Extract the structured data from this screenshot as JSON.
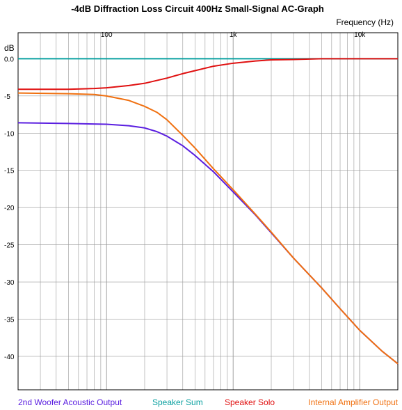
{
  "chart_data": {
    "type": "line",
    "title": "-4dB Diffraction Loss Circuit 400Hz Small-Signal AC-Graph",
    "xlabel": "Frequency  (Hz)",
    "ylabel": "dB",
    "x_scale": "log",
    "xlim": [
      20,
      20000
    ],
    "ylim": [
      -44.5,
      3.5
    ],
    "x_tick_labels": [
      {
        "value": 100,
        "label": "100"
      },
      {
        "value": 1000,
        "label": "1k"
      },
      {
        "value": 10000,
        "label": "10k"
      }
    ],
    "y_ticks": [
      {
        "value": 0,
        "label": "0.0"
      },
      {
        "value": -5,
        "label": "-5"
      },
      {
        "value": -10,
        "label": "-10"
      },
      {
        "value": -15,
        "label": "-15"
      },
      {
        "value": -20,
        "label": "-20"
      },
      {
        "value": -25,
        "label": "-25"
      },
      {
        "value": -30,
        "label": "-30"
      },
      {
        "value": -35,
        "label": "-35"
      },
      {
        "value": -40,
        "label": "-40"
      }
    ],
    "grid": true,
    "legend_position": "bottom",
    "series": [
      {
        "name": "2nd Woofer Acoustic Output",
        "color": "#5a1ee0",
        "points": [
          [
            20,
            -8.6
          ],
          [
            50,
            -8.7
          ],
          [
            100,
            -8.8
          ],
          [
            150,
            -9.0
          ],
          [
            200,
            -9.3
          ],
          [
            250,
            -9.8
          ],
          [
            300,
            -10.4
          ],
          [
            400,
            -11.7
          ],
          [
            500,
            -13.0
          ],
          [
            700,
            -15.2
          ],
          [
            1000,
            -17.9
          ],
          [
            1500,
            -21.0
          ],
          [
            2000,
            -23.4
          ],
          [
            3000,
            -26.8
          ],
          [
            5000,
            -30.8
          ],
          [
            7000,
            -33.6
          ],
          [
            10000,
            -36.5
          ],
          [
            15000,
            -39.3
          ],
          [
            20000,
            -41.0
          ]
        ]
      },
      {
        "name": "Speaker Sum",
        "color": "#0aa0a0",
        "points": [
          [
            20,
            0.0
          ],
          [
            100,
            0.0
          ],
          [
            1000,
            0.0
          ],
          [
            10000,
            0.0
          ],
          [
            20000,
            0.0
          ]
        ]
      },
      {
        "name": "Speaker Solo",
        "color": "#e01010",
        "points": [
          [
            20,
            -4.1
          ],
          [
            50,
            -4.1
          ],
          [
            80,
            -4.0
          ],
          [
            100,
            -3.9
          ],
          [
            150,
            -3.6
          ],
          [
            200,
            -3.3
          ],
          [
            300,
            -2.6
          ],
          [
            400,
            -2.0
          ],
          [
            500,
            -1.6
          ],
          [
            700,
            -1.0
          ],
          [
            1000,
            -0.6
          ],
          [
            1500,
            -0.3
          ],
          [
            2000,
            -0.15
          ],
          [
            3000,
            -0.1
          ],
          [
            5000,
            0.0
          ],
          [
            10000,
            0.0
          ],
          [
            20000,
            0.0
          ]
        ]
      },
      {
        "name": "Internal Amplifier Output",
        "color": "#f07010",
        "points": [
          [
            20,
            -4.6
          ],
          [
            50,
            -4.7
          ],
          [
            80,
            -4.8
          ],
          [
            100,
            -5.0
          ],
          [
            150,
            -5.6
          ],
          [
            200,
            -6.4
          ],
          [
            250,
            -7.2
          ],
          [
            300,
            -8.2
          ],
          [
            400,
            -10.3
          ],
          [
            500,
            -12.0
          ],
          [
            700,
            -14.8
          ],
          [
            1000,
            -17.6
          ],
          [
            1500,
            -20.9
          ],
          [
            2000,
            -23.3
          ],
          [
            3000,
            -26.8
          ],
          [
            5000,
            -30.8
          ],
          [
            7000,
            -33.6
          ],
          [
            10000,
            -36.5
          ],
          [
            15000,
            -39.3
          ],
          [
            20000,
            -41.0
          ]
        ]
      }
    ]
  }
}
